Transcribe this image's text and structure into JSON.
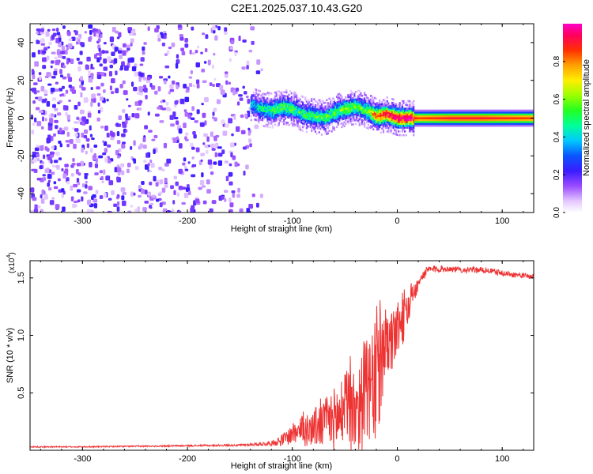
{
  "page": {
    "title": "C2E1.2025.037.10.43.G20"
  },
  "chart_data": [
    {
      "type": "heatmap",
      "title": "C2E1.2025.037.10.43.G20",
      "xlabel": "Height of straight line (km)",
      "ylabel": "Frequency (Hz)",
      "xlim": [
        -350,
        130
      ],
      "ylim": [
        -50,
        50
      ],
      "xticks": [
        -300,
        -200,
        -100,
        0,
        100
      ],
      "xtick_labels": [
        "-300",
        "-200",
        "-100",
        "0",
        "100"
      ],
      "yticks": [
        -40,
        -20,
        0,
        20,
        40
      ],
      "ytick_labels": [
        "-40",
        "-20",
        "0",
        "20",
        "40"
      ],
      "colorbar": {
        "label": "Normalized spectral amplitude",
        "range": [
          0,
          1
        ],
        "ticks": [
          0.0,
          0.2,
          0.4,
          0.6,
          0.8
        ],
        "tick_labels": [
          "0.0",
          "0.2",
          "0.4",
          "0.6",
          "0.8"
        ],
        "colormap": "rainbow (white-violet-blue-cyan-green-yellow-red-magenta)"
      },
      "features": {
        "noise_region_height_range": [
          -350,
          -140
        ],
        "noise_amplitude_typical": 0.15,
        "signal_track": {
          "x": [
            -140,
            -130,
            -120,
            -110,
            -100,
            -90,
            -80,
            -70,
            -60,
            -50,
            -40,
            -30,
            -20,
            -10,
            0,
            10,
            20,
            50,
            80,
            100,
            130
          ],
          "freq": [
            7,
            5,
            4,
            6,
            5,
            2,
            1,
            0,
            3,
            5,
            6,
            4,
            1,
            2,
            0,
            0,
            0,
            0,
            0,
            0,
            0
          ],
          "amplitude": [
            0.35,
            0.45,
            0.5,
            0.55,
            0.5,
            0.5,
            0.5,
            0.5,
            0.55,
            0.6,
            0.55,
            0.55,
            0.85,
            0.9,
            0.95,
            0.95,
            0.85,
            0.9,
            0.9,
            0.88,
            0.85
          ]
        }
      }
    },
    {
      "type": "line",
      "xlabel": "Height of straight line (km)",
      "ylabel": "SNR (10 * v/v)",
      "y_multiplier_label": "(x10",
      "y_multiplier_exponent": "4",
      "xlim": [
        -350,
        130
      ],
      "ylim": [
        0,
        16500
      ],
      "xticks": [
        -300,
        -200,
        -100,
        0,
        100
      ],
      "xtick_labels": [
        "-300",
        "-200",
        "-100",
        "0",
        "100"
      ],
      "yticks": [
        5000,
        10000,
        15000
      ],
      "ytick_labels": [
        "0.5",
        "1.0",
        "1.5"
      ],
      "color": "#ee3333",
      "series": [
        {
          "x": [
            -350,
            -300,
            -250,
            -200,
            -150,
            -120,
            -110,
            -100,
            -90,
            -80,
            -70,
            -60,
            -50,
            -40,
            -30,
            -25,
            -20,
            -15,
            -10,
            -5,
            0,
            5,
            10,
            15,
            20,
            25,
            30,
            40,
            50,
            60,
            70,
            80,
            90,
            100,
            110,
            120,
            130
          ],
          "values": [
            300,
            300,
            350,
            400,
            450,
            600,
            900,
            1400,
            1700,
            2000,
            2300,
            2700,
            3200,
            3800,
            4500,
            5200,
            6000,
            7200,
            8500,
            9500,
            10500,
            11500,
            12300,
            13500,
            14500,
            15300,
            15700,
            15800,
            15800,
            15700,
            15700,
            15700,
            15600,
            15400,
            15300,
            15200,
            15100
          ],
          "noise_amplitude": [
            50,
            50,
            60,
            70,
            80,
            200,
            500,
            900,
            1400,
            1700,
            2200,
            2800,
            3600,
            4200,
            5200,
            4200,
            6000,
            3800,
            3500,
            2800,
            2200,
            2500,
            1800,
            900,
            600,
            500,
            400,
            300,
            250,
            250,
            250,
            250,
            250,
            250,
            250,
            250,
            250
          ]
        }
      ]
    }
  ]
}
